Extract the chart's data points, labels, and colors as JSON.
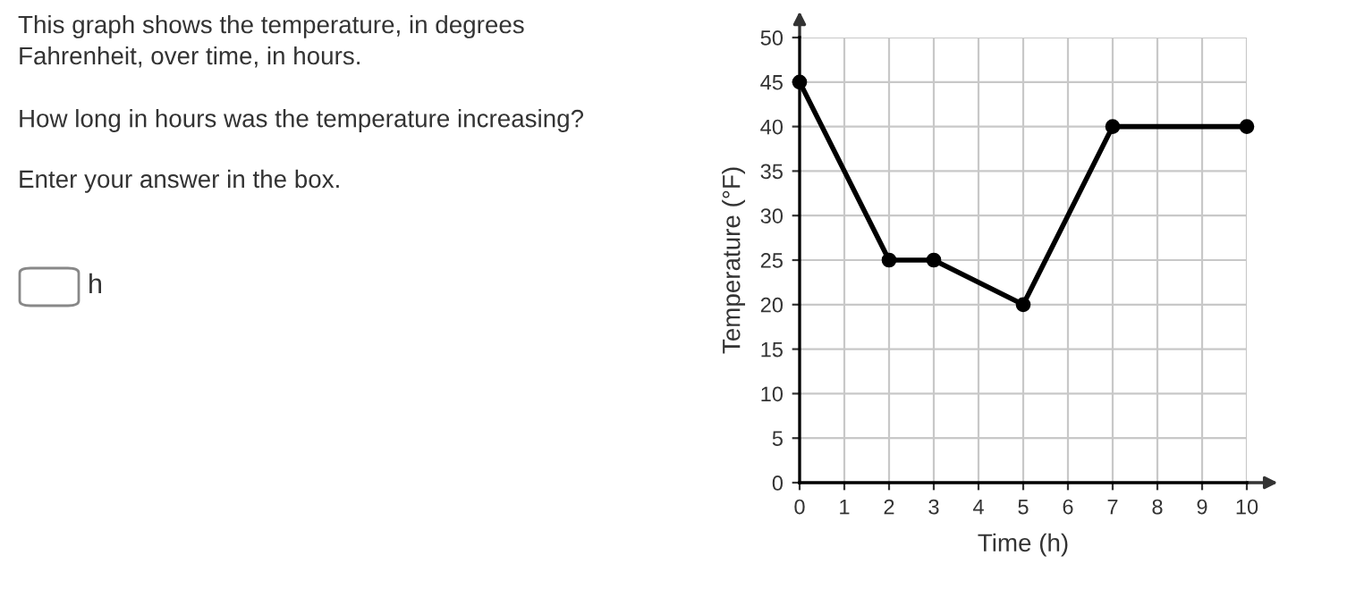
{
  "chart_data": {
    "type": "line",
    "xlabel": "Time (h)",
    "ylabel": "Temperature (°F)",
    "x": [
      0,
      2,
      3,
      5,
      7,
      10
    ],
    "series": [
      {
        "color": "#000000",
        "values": [
          45,
          25,
          25,
          20,
          40,
          40
        ]
      }
    ],
    "xlim": [
      0,
      10
    ],
    "ylim": [
      0,
      50
    ],
    "xticks": [
      0,
      1,
      2,
      3,
      4,
      5,
      6,
      7,
      8,
      9,
      10
    ],
    "yticks": [
      0,
      5,
      10,
      15,
      20,
      25,
      30,
      35,
      40,
      45,
      50
    ],
    "grid": true,
    "marker": "circle",
    "line_style": "solid",
    "annotations": [
      "This graph shows the temperature, in degrees\nFahrenheit, over time, in hours.",
      "How long in hours was the temperature increasing?",
      "Enter your answer in the box.",
      "h"
    ]
  }
}
